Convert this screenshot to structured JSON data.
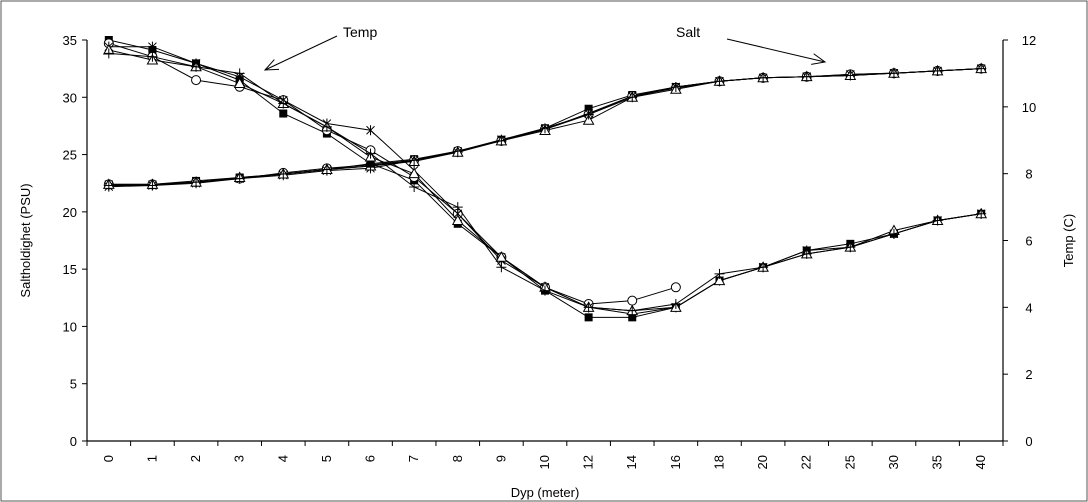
{
  "chart_data": {
    "type": "line",
    "x_categories": [
      "0",
      "1",
      "2",
      "3",
      "4",
      "5",
      "6",
      "7",
      "8",
      "9",
      "10",
      "12",
      "14",
      "16",
      "18",
      "20",
      "22",
      "25",
      "30",
      "35",
      "40"
    ],
    "xlabel": "Dyp (meter)",
    "ylabel_left": "Saltholdighet (PSU)",
    "ylabel_right": "Temp (C)",
    "ylim_left": [
      0,
      35
    ],
    "yticks_left": [
      0,
      5,
      10,
      15,
      20,
      25,
      30,
      35
    ],
    "ylim_right": [
      0,
      12
    ],
    "yticks_right": [
      0,
      2,
      4,
      6,
      8,
      10,
      12
    ],
    "annotations": [
      {
        "text": "Temp"
      },
      {
        "text": "Salt"
      }
    ],
    "salt_series": [
      {
        "marker": "filled-square",
        "values": [
          22.4,
          22.4,
          22.7,
          23.0,
          23.3,
          23.7,
          24.2,
          24.6,
          25.3,
          26.3,
          27.3,
          29.0,
          30.2,
          30.9,
          31.4,
          31.7,
          31.8,
          31.9,
          32.1,
          32.3,
          32.5
        ]
      },
      {
        "marker": "open-circle",
        "values": [
          22.4,
          22.4,
          22.6,
          22.9,
          23.4,
          23.8,
          24.1,
          24.5,
          25.3,
          26.2,
          27.2,
          28.5,
          30.1,
          30.8,
          31.4,
          31.7,
          31.8,
          32.0,
          32.1,
          32.3,
          32.5
        ]
      },
      {
        "marker": "star",
        "values": [
          22.2,
          22.3,
          22.5,
          22.9,
          23.2,
          23.6,
          23.8,
          24.5,
          25.2,
          26.3,
          27.2,
          28.6,
          30.1,
          30.9,
          31.4,
          31.7,
          31.8,
          32.0,
          32.1,
          32.3,
          32.5
        ]
      },
      {
        "marker": "open-triangle",
        "values": [
          22.4,
          22.4,
          22.6,
          23.0,
          23.3,
          23.7,
          24.0,
          24.4,
          25.2,
          26.2,
          27.1,
          28.0,
          30.0,
          30.7,
          31.4,
          31.7,
          31.8,
          31.9,
          32.1,
          32.3,
          32.5
        ]
      },
      {
        "marker": "plus",
        "values": [
          22.3,
          22.3,
          22.6,
          22.9,
          23.3,
          23.7,
          24.0,
          24.5,
          25.3,
          26.2,
          27.3,
          28.5,
          30.0,
          30.9,
          31.4,
          31.7,
          31.8,
          31.9,
          32.1,
          32.3,
          32.5
        ]
      }
    ],
    "temp_series": [
      {
        "marker": "filled-square",
        "values": [
          12.0,
          11.7,
          11.3,
          10.8,
          9.8,
          9.2,
          8.3,
          7.8,
          6.5,
          5.5,
          4.5,
          3.7,
          3.7,
          4.0,
          4.8,
          5.2,
          5.7,
          5.9,
          6.2,
          6.6,
          6.8
        ]
      },
      {
        "marker": "open-circle",
        "values": [
          11.9,
          11.5,
          10.8,
          10.6,
          10.2,
          9.3,
          8.7,
          7.9,
          6.8,
          5.5,
          4.6,
          4.1,
          4.2,
          4.6,
          null,
          null,
          null,
          null,
          null,
          null,
          null
        ]
      },
      {
        "marker": "star",
        "values": [
          11.8,
          11.8,
          11.3,
          10.9,
          10.2,
          9.5,
          9.3,
          8.1,
          6.8,
          5.4,
          4.6,
          4.0,
          3.8,
          4.0,
          4.8,
          5.2,
          5.7,
          5.8,
          6.2,
          6.6,
          6.8
        ]
      },
      {
        "marker": "open-triangle",
        "values": [
          11.7,
          11.4,
          11.2,
          10.7,
          10.1,
          9.4,
          8.5,
          8.0,
          6.6,
          5.5,
          4.6,
          4.0,
          3.9,
          4.0,
          4.8,
          5.2,
          5.6,
          5.8,
          6.3,
          6.6,
          6.8
        ]
      },
      {
        "marker": "plus",
        "values": [
          11.6,
          11.5,
          11.2,
          11.0,
          10.1,
          9.4,
          8.6,
          7.6,
          7.0,
          5.2,
          4.5,
          4.0,
          3.9,
          4.1,
          5.0,
          5.2,
          5.6,
          5.8,
          6.2,
          6.6,
          6.8
        ]
      }
    ]
  }
}
